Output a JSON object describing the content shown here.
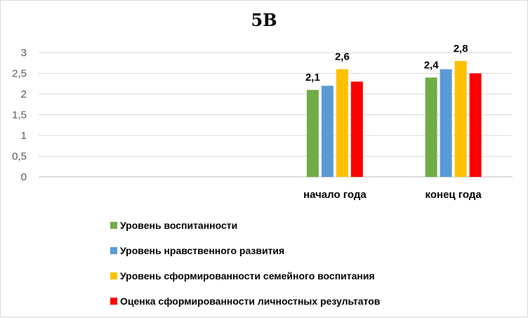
{
  "chart_data": {
    "type": "bar",
    "title": "5В",
    "categories": [
      "",
      "",
      "начало года",
      "конец года"
    ],
    "series": [
      {
        "name": "Уровень воспитанности",
        "color": "#70ad47",
        "values": [
          null,
          null,
          2.1,
          2.4
        ]
      },
      {
        "name": "Уровень нравственного развития",
        "color": "#5b9bd5",
        "values": [
          null,
          null,
          2.2,
          2.6
        ]
      },
      {
        "name": "Уровень сформированности семейного воспитания",
        "color": "#ffc000",
        "values": [
          null,
          null,
          2.6,
          2.8
        ]
      },
      {
        "name": "Оценка сформированности личностных результатов",
        "color": "#ff0000",
        "values": [
          null,
          null,
          2.3,
          2.5
        ]
      }
    ],
    "data_labels": [
      {
        "series": 0,
        "category": 2,
        "text": "2,1"
      },
      {
        "series": 2,
        "category": 2,
        "text": "2,6"
      },
      {
        "series": 0,
        "category": 3,
        "text": "2,4"
      },
      {
        "series": 2,
        "category": 3,
        "text": "2,8"
      }
    ],
    "y_ticks": [
      "0",
      "0,5",
      "1",
      "1,5",
      "2",
      "2,5",
      "3"
    ],
    "ylim": [
      0,
      3
    ],
    "grid": true,
    "legend_position": "bottom"
  }
}
